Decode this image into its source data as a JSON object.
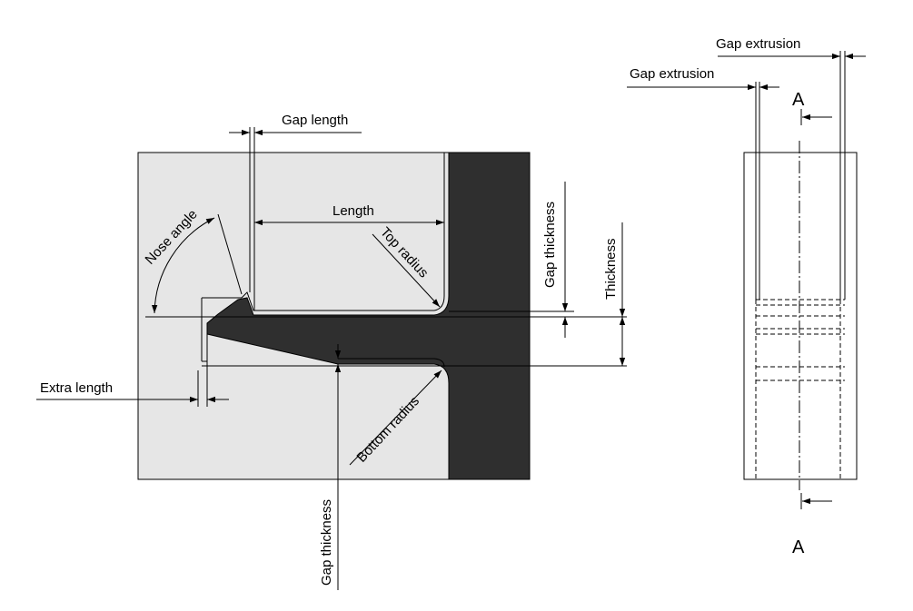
{
  "diagram": {
    "labels": {
      "gap_length": "Gap length",
      "length": "Length",
      "nose_angle": "Nose angle",
      "top_radius": "Top radius",
      "gap_thickness_right": "Gap thickness",
      "thickness": "Thickness",
      "extra_length": "Extra length",
      "bottom_radius": "Bottom radius",
      "gap_thickness_bottom": "Gap thickness",
      "gap_extrusion_top": "Gap extrusion",
      "gap_extrusion_left": "Gap extrusion",
      "section_top": "A",
      "section_bottom": "A"
    },
    "colors": {
      "block_fill": "#e6e6e6",
      "dark_fill": "#2f2f2f",
      "line": "#000000"
    }
  }
}
